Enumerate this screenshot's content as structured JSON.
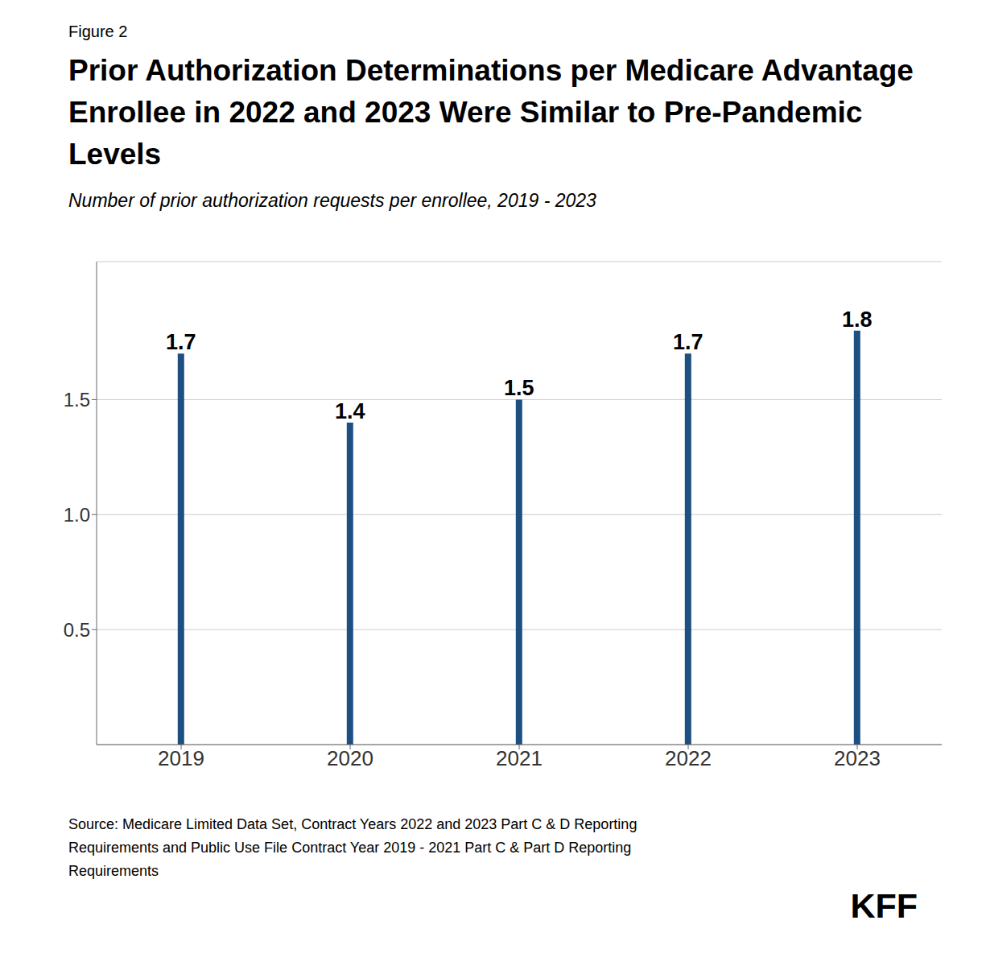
{
  "chart_data": {
    "type": "bar",
    "figure_label": "Figure 2",
    "title": "Prior Authorization Determinations per Medicare Advantage\nEnrollee in 2022 and 2023 Were Similar to Pre-Pandemic\nLevels",
    "subtitle": "Number of prior authorization requests per enrollee, 2019 - 2023",
    "categories": [
      "2019",
      "2020",
      "2021",
      "2022",
      "2023"
    ],
    "values": [
      1.7,
      1.4,
      1.5,
      1.7,
      1.8
    ],
    "color": "#1c4f82",
    "ylim": [
      0,
      2.1
    ],
    "yticks": [
      0.5,
      {
        "value": 1.0,
        "label": "1.0"
      },
      1.5
    ],
    "grid": true,
    "data_labels": true,
    "source": "Source: Medicare Limited Data Set, Contract Years 2022 and 2023 Part C & D Reporting\nRequirements and Public Use File Contract Year 2019 - 2021 Part C & Part D Reporting\nRequirements",
    "annotations": [
      "KFF"
    ]
  }
}
